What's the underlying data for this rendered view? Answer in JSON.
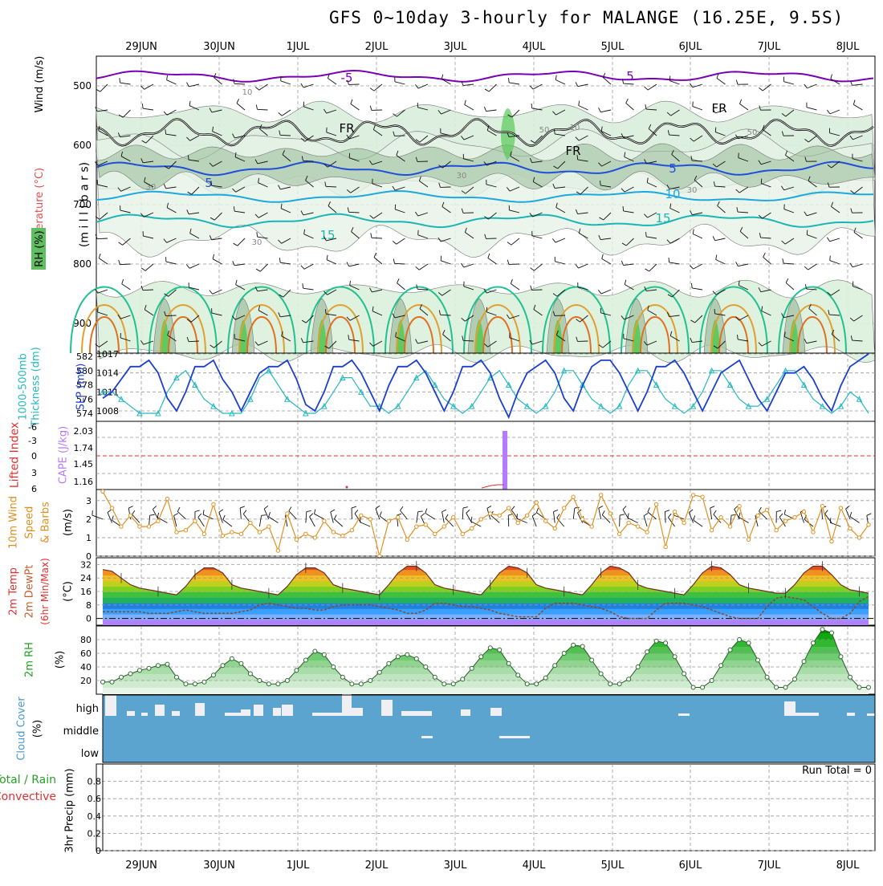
{
  "title": "GFS 0~10day 3-hourly for MALANGE (16.25E, 9.5S)",
  "colors": {
    "grid": "#999999",
    "temp_contours": [
      "#7a00b4",
      "#1f4fd8",
      "#1ca8e0",
      "#1bb5b5",
      "#20c090",
      "#e0a030",
      "#e07020",
      "#c00060"
    ],
    "rh_fill": "#57c957",
    "slp_line": "#1d3fd0",
    "thickness_line": "#27b8c0",
    "cape_bar": "#b57bff",
    "lifted_index": "#e03030",
    "wind_speed": "#e09020",
    "cloud": "#5ba4cf"
  },
  "chart_data": [
    {
      "type": "line",
      "panel": "upper-air",
      "ylabel_left": [
        "Wind (m/s)",
        "Temperature (°C)",
        "RH (%)"
      ],
      "ylabel": "(m i l l i b a r s)",
      "x_dates": [
        "29JUN",
        "30JUN",
        "1JUL",
        "2JUL",
        "3JUL",
        "4JUL",
        "5JUL",
        "6JUL",
        "7JUL",
        "8JUL"
      ],
      "y_ticks": [
        500,
        600,
        700,
        800,
        900
      ],
      "ylim": [
        450,
        950
      ],
      "contour_labels": [
        "-5",
        "5",
        "FR",
        "FR",
        "FR",
        "5",
        "5",
        "10",
        "15",
        "15",
        "30",
        "30",
        "30",
        "50",
        "50",
        "10",
        "10",
        "30"
      ]
    },
    {
      "type": "line",
      "panel": "slp-thickness",
      "ylabel_left": [
        "1000-500mb",
        "Thickness (dm)"
      ],
      "ylabel_right": "SLP (mb)",
      "y_ticks_left": [
        582,
        580,
        578,
        576,
        574
      ],
      "y_ticks_right": [
        1017,
        1014,
        1011,
        1008
      ],
      "series": [
        {
          "name": "SLP",
          "values": [
            1010,
            1011,
            1013,
            1015,
            1015,
            1016,
            1014,
            1010,
            1008,
            1011,
            1015,
            1015,
            1016,
            1013,
            1011,
            1008,
            1011,
            1014,
            1015,
            1015,
            1016,
            1013,
            1009,
            1008,
            1011,
            1015,
            1015,
            1016,
            1014,
            1011,
            1008,
            1012,
            1015,
            1015,
            1016,
            1014,
            1011,
            1008,
            1011,
            1015,
            1015,
            1016,
            1014,
            1010,
            1007,
            1011,
            1014,
            1015,
            1016,
            1014,
            1010,
            1008,
            1012,
            1015,
            1016,
            1016,
            1014,
            1011,
            1008,
            1011,
            1015,
            1015,
            1016,
            1014,
            1011,
            1008,
            1011,
            1014,
            1015,
            1016,
            1013,
            1010,
            1008,
            1011,
            1014,
            1014,
            1015,
            1013,
            1010,
            1008,
            1012,
            1015,
            1016,
            1017
          ]
        },
        {
          "name": "Thickness",
          "values": [
            577,
            577,
            576,
            575,
            574,
            574,
            574,
            577,
            579,
            580,
            578,
            576,
            575,
            574,
            574,
            574,
            576,
            579,
            580,
            578,
            576,
            575,
            574,
            574,
            575,
            577,
            579,
            579,
            577,
            575,
            575,
            574,
            575,
            577,
            579,
            580,
            578,
            576,
            575,
            574,
            575,
            577,
            579,
            580,
            578,
            576,
            575,
            574,
            575,
            577,
            580,
            580,
            578,
            576,
            575,
            574,
            575,
            578,
            580,
            580,
            578,
            576,
            575,
            574,
            575,
            577,
            580,
            580,
            578,
            576,
            575,
            575,
            576,
            578,
            580,
            580,
            578,
            576,
            575,
            574,
            575,
            577,
            576,
            574
          ]
        }
      ]
    },
    {
      "type": "bar",
      "panel": "cape-li",
      "ylabel_left": "Lifted Index",
      "ylabel_right": "CAPE (J/kg)",
      "y_ticks_left": [
        "-6",
        "-3",
        "0",
        "3",
        "6"
      ],
      "y_ticks_right": [
        "2.03",
        "1.74",
        "1.45",
        "1.16"
      ],
      "cape_spike_at": "3JUL 15Z",
      "cape_max": 2.03
    },
    {
      "type": "line",
      "panel": "10m-wind",
      "ylabel_left": [
        "10m Wind",
        "Speed",
        "& Barbs"
      ],
      "ylabel_right": "(m/s)",
      "y_ticks": [
        0,
        1,
        2,
        3
      ],
      "ylim": [
        0,
        3.6
      ],
      "series": [
        {
          "name": "Speed",
          "values": [
            3.5,
            2.6,
            1.6,
            2.2,
            1.6,
            1.6,
            1.9,
            3.1,
            1.3,
            1.4,
            1.9,
            1.2,
            2.8,
            1.1,
            1.3,
            1.2,
            1.8,
            1.3,
            1.6,
            0.3,
            2.3,
            0.9,
            1.2,
            1.0,
            1.9,
            1.3,
            1.1,
            1.4,
            2.2,
            2.0,
            0.0,
            1.9,
            2.1,
            0.9,
            1.6,
            1.7,
            1.2,
            1.6,
            2.1,
            1.2,
            1.5,
            2.0,
            2.3,
            2.2,
            2.6,
            1.8,
            2.2,
            2.9,
            1.9,
            1.5,
            2.6,
            3.2,
            2.0,
            1.6,
            3.3,
            2.3,
            1.2,
            1.8,
            1.6,
            1.3,
            2.8,
            0.5,
            2.4,
            1.8,
            3.3,
            3.2,
            1.4,
            2.1,
            1.6,
            2.7,
            0.9,
            2.2,
            2.5,
            1.4,
            1.9,
            2.1,
            2.4,
            1.3,
            2.7,
            0.8,
            2.6,
            1.5,
            1.0,
            1.7
          ]
        }
      ]
    },
    {
      "type": "area",
      "panel": "2m-temp",
      "ylabel_left": [
        "2m Temp",
        "2m DewPt",
        "(6hr Min/Max)"
      ],
      "ylabel_right": "(°C)",
      "y_ticks": [
        0,
        8,
        16,
        24,
        32
      ],
      "ylim": [
        -4,
        36
      ],
      "series": [
        {
          "name": "Temperature",
          "values": [
            29,
            28,
            24,
            20,
            18,
            17,
            16,
            15,
            14,
            19,
            26,
            30,
            30,
            27,
            20,
            18,
            17,
            16,
            15,
            14,
            19,
            26,
            30,
            30,
            27,
            20,
            18,
            17,
            16,
            15,
            14,
            20,
            27,
            31,
            31,
            27,
            20,
            18,
            17,
            16,
            15,
            14,
            20,
            27,
            31,
            30,
            27,
            20,
            18,
            17,
            16,
            15,
            14,
            20,
            27,
            31,
            30,
            27,
            20,
            18,
            17,
            16,
            15,
            14,
            20,
            27,
            31,
            30,
            26,
            20,
            18,
            17,
            16,
            15,
            15,
            20,
            27,
            31,
            31,
            26,
            20,
            17,
            16,
            15
          ]
        },
        {
          "name": "Dew point",
          "values": [
            4,
            4,
            4,
            4,
            4,
            3,
            3,
            3,
            4,
            5,
            4,
            3,
            3,
            3,
            3,
            4,
            5,
            8,
            9,
            8,
            7,
            6,
            6,
            5,
            5,
            7,
            8,
            8,
            8,
            8,
            7,
            6,
            5,
            3,
            3,
            5,
            9,
            9,
            8,
            7,
            7,
            6,
            5,
            3,
            2,
            1,
            1,
            1,
            6,
            9,
            9,
            9,
            8,
            7,
            6,
            4,
            1,
            0,
            0,
            0,
            5,
            9,
            9,
            9,
            8,
            7,
            5,
            3,
            1,
            0,
            0,
            0,
            7,
            12,
            13,
            12,
            11,
            7,
            3,
            0,
            0,
            3,
            10,
            13
          ]
        }
      ]
    },
    {
      "type": "area",
      "panel": "2m-rh",
      "ylabel_left": "2m RH",
      "ylabel_right": "(%)",
      "y_ticks": [
        20,
        40,
        60,
        80
      ],
      "ylim": [
        0,
        100
      ],
      "series": [
        {
          "name": "RH",
          "values": [
            18,
            18,
            25,
            30,
            35,
            38,
            42,
            44,
            25,
            15,
            15,
            18,
            28,
            42,
            52,
            45,
            30,
            20,
            15,
            15,
            20,
            35,
            50,
            63,
            58,
            40,
            25,
            15,
            15,
            20,
            32,
            45,
            55,
            58,
            52,
            40,
            25,
            15,
            15,
            22,
            38,
            55,
            68,
            65,
            45,
            28,
            15,
            15,
            24,
            42,
            60,
            72,
            70,
            50,
            30,
            15,
            15,
            22,
            40,
            62,
            78,
            75,
            55,
            30,
            10,
            10,
            20,
            42,
            65,
            80,
            75,
            50,
            25,
            10,
            10,
            22,
            48,
            75,
            95,
            90,
            55,
            25,
            10,
            10
          ]
        }
      ]
    },
    {
      "type": "bar",
      "panel": "cloud-cover",
      "ylabel_left": [
        "Cloud Cover",
        "(%)"
      ],
      "y_ticks": [
        "high",
        "middle",
        "low"
      ]
    },
    {
      "type": "bar",
      "panel": "precip",
      "ylabel_left": [
        "Total / Rain",
        "Convective"
      ],
      "ylabel_right": "3hr Precip (mm)",
      "y_ticks": [
        0,
        0.2,
        0.4,
        0.6,
        0.8
      ],
      "ylim": [
        0,
        1.0
      ],
      "annotation": "Run Total = 0",
      "x_dates": [
        "29JUN",
        "30JUN",
        "1JUL",
        "2JUL",
        "3JUL",
        "4JUL",
        "5JUL",
        "6JUL",
        "7JUL",
        "8JUL"
      ]
    }
  ]
}
